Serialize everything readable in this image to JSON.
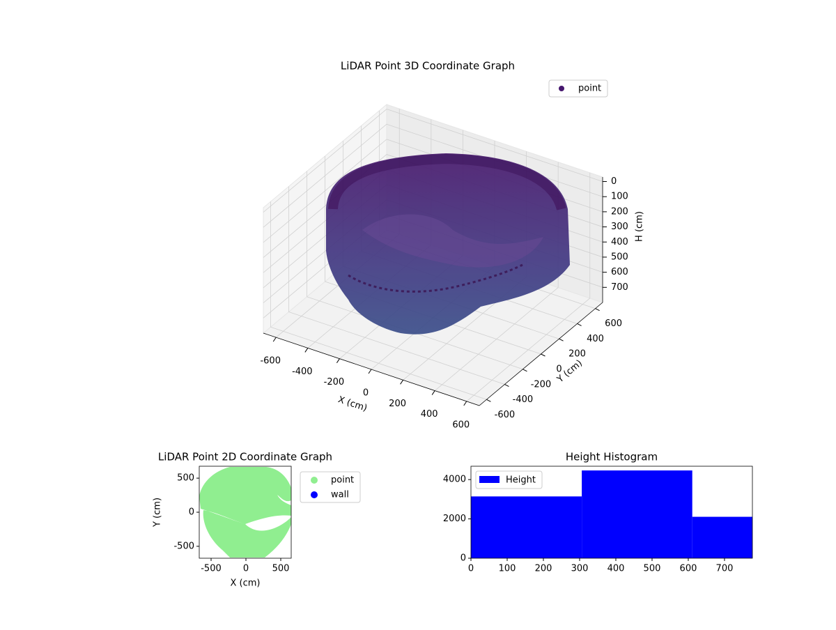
{
  "chart_data": [
    {
      "type": "scatter3d",
      "title": "LiDAR Point 3D Coordinate Graph",
      "xlabel": "X (cm)",
      "ylabel": "Y (cm)",
      "zlabel": "H (cm)",
      "xlim": [
        -680,
        680
      ],
      "ylim": [
        -680,
        680
      ],
      "zlim": [
        800,
        -30
      ],
      "xticks": [
        -600,
        -400,
        -200,
        0,
        200,
        400,
        600
      ],
      "yticks": [
        -600,
        -400,
        -200,
        0,
        200,
        400,
        600
      ],
      "zticks": [
        0,
        100,
        200,
        300,
        400,
        500,
        600,
        700
      ],
      "series": [
        {
          "name": "point",
          "color": "#46176e"
        }
      ],
      "legend": "upper right",
      "grid": true
    },
    {
      "type": "scatter",
      "title": "LiDAR Point 2D Coordinate Graph",
      "xlabel": "X (cm)",
      "ylabel": "Y (cm)",
      "xlim": [
        -670,
        650
      ],
      "ylim": [
        -675,
        675
      ],
      "xticks": [
        -500,
        0,
        500
      ],
      "yticks": [
        -500,
        0,
        500
      ],
      "series": [
        {
          "name": "point",
          "color": "#90ee90"
        },
        {
          "name": "wall",
          "color": "#0000ff"
        }
      ],
      "legend": "outside right"
    },
    {
      "type": "histogram",
      "title": "Height Histogram",
      "bins": [
        0,
        306,
        611,
        777
      ],
      "values": [
        3143,
        4464,
        2107
      ],
      "series_name": "Height",
      "color": "#0000ff",
      "xlim": [
        0,
        777
      ],
      "ylim": [
        0,
        4679
      ],
      "xticks": [
        0,
        100,
        200,
        300,
        400,
        500,
        600,
        700
      ],
      "yticks": [
        0,
        2000,
        4000
      ],
      "legend": "upper left"
    }
  ]
}
